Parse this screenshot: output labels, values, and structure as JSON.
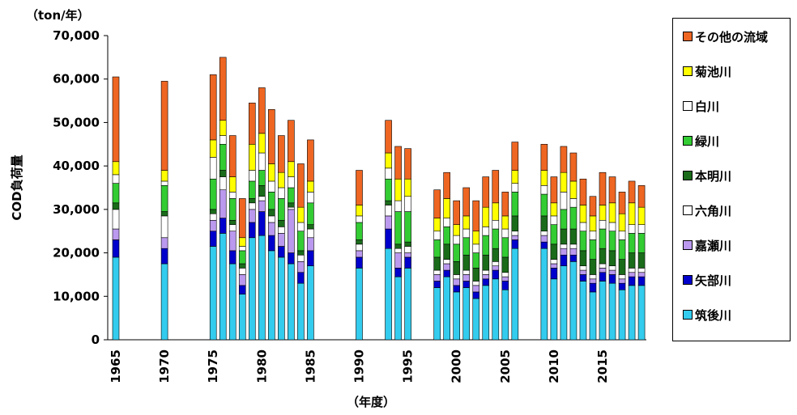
{
  "chart_data": {
    "type": "bar",
    "stacked": true,
    "unit_label": "（ton/年）",
    "xlabel": "（年度）",
    "ylabel": "COD負荷量",
    "ylim": [
      0,
      70000
    ],
    "y_ticks": [
      "0",
      "10,000",
      "20,000",
      "30,000",
      "40,000",
      "50,000",
      "60,000",
      "70,000"
    ],
    "x_tick_labels": [
      1965,
      1970,
      1975,
      1980,
      1985,
      1990,
      1995,
      2000,
      2005,
      2010,
      2015
    ],
    "legend_position": "right",
    "x": [
      1965,
      1970,
      1975,
      1976,
      1977,
      1978,
      1979,
      1980,
      1981,
      1982,
      1983,
      1984,
      1985,
      1990,
      1993,
      1994,
      1995,
      1998,
      1999,
      2000,
      2001,
      2002,
      2003,
      2004,
      2005,
      2006,
      2009,
      2010,
      2011,
      2012,
      2013,
      2014,
      2015,
      2016,
      2017,
      2018,
      2019
    ],
    "series": [
      {
        "name": "筑後川",
        "color": "#33CCEE",
        "values": [
          19000,
          17500,
          21500,
          24500,
          17500,
          10500,
          23500,
          24000,
          20500,
          19000,
          17500,
          13000,
          17000,
          16500,
          21000,
          14500,
          16500,
          12000,
          14500,
          11000,
          12000,
          9500,
          12500,
          14000,
          11500,
          21000,
          21000,
          14000,
          17000,
          18000,
          13500,
          11000,
          13500,
          13000,
          11500,
          12500,
          12500
        ]
      },
      {
        "name": "矢部川",
        "color": "#0000CC",
        "values": [
          4000,
          3500,
          3500,
          3500,
          3000,
          2000,
          3500,
          5500,
          3500,
          2500,
          2500,
          2500,
          3500,
          2500,
          4500,
          2000,
          2500,
          1500,
          1500,
          1500,
          1500,
          1500,
          1500,
          2000,
          2000,
          2000,
          1500,
          2500,
          2500,
          1500,
          1500,
          2000,
          2000,
          2000,
          1500,
          2000,
          2000
        ]
      },
      {
        "name": "嘉瀬川",
        "color": "#BB99EE",
        "values": [
          2500,
          2500,
          2500,
          6500,
          4500,
          2500,
          3000,
          2500,
          3000,
          3000,
          10000,
          2500,
          3000,
          1500,
          3000,
          3500,
          1000,
          1500,
          1500,
          1500,
          1500,
          1500,
          1000,
          1000,
          1000,
          1000,
          1500,
          1000,
          1500,
          1500,
          1000,
          1000,
          1000,
          1000,
          1000,
          1000,
          1000
        ]
      },
      {
        "name": "六角川",
        "color": "#FFFFFF",
        "values": [
          4500,
          5000,
          1500,
          3000,
          1500,
          1500,
          1500,
          1000,
          1500,
          1500,
          500,
          1500,
          2000,
          1500,
          2500,
          1000,
          1500,
          1000,
          1000,
          1000,
          1000,
          1000,
          1000,
          1000,
          1000,
          1000,
          1000,
          1000,
          1000,
          1000,
          1000,
          1000,
          1000,
          1000,
          1000,
          1000,
          1000
        ]
      },
      {
        "name": "本明川",
        "color": "#1A6B1A",
        "values": [
          1500,
          1000,
          1000,
          1500,
          1000,
          1000,
          1000,
          2500,
          1500,
          1500,
          1000,
          1000,
          1000,
          1000,
          1000,
          1000,
          1000,
          3000,
          3500,
          3000,
          3500,
          3000,
          3500,
          3000,
          3500,
          3500,
          3500,
          3500,
          3500,
          3500,
          3500,
          3500,
          3500,
          3500,
          3500,
          3500,
          3500
        ]
      },
      {
        "name": "緑川",
        "color": "#33CC33",
        "values": [
          4500,
          6000,
          7000,
          6000,
          5000,
          3000,
          4000,
          3500,
          4000,
          5000,
          3500,
          4500,
          5000,
          4000,
          5000,
          7500,
          7000,
          4000,
          4000,
          4000,
          4000,
          3500,
          4500,
          4500,
          4500,
          5500,
          5000,
          4500,
          4500,
          5000,
          4500,
          4500,
          4500,
          4500,
          4500,
          4500,
          4500
        ]
      },
      {
        "name": "白川",
        "color": "#FFFFFF",
        "values": [
          2000,
          1000,
          5000,
          2000,
          1500,
          1000,
          2500,
          4000,
          2500,
          2500,
          2500,
          2000,
          2500,
          1500,
          2500,
          2500,
          3500,
          2000,
          2000,
          2000,
          2000,
          2000,
          2000,
          2000,
          2000,
          2000,
          2000,
          2000,
          4000,
          2000,
          2000,
          2000,
          2000,
          2000,
          2000,
          2000,
          2000
        ]
      },
      {
        "name": "菊池川",
        "color": "#FFFF00",
        "values": [
          3000,
          2500,
          4000,
          3500,
          3500,
          2000,
          6000,
          4500,
          4000,
          3500,
          3500,
          3500,
          2500,
          2500,
          3500,
          5000,
          4000,
          3000,
          4500,
          2500,
          3000,
          3000,
          4500,
          4000,
          3000,
          3000,
          3500,
          3000,
          4500,
          4000,
          4000,
          3500,
          3500,
          4500,
          4000,
          5000,
          4000
        ]
      },
      {
        "name": "その他の流域",
        "color": "#EE6622",
        "values": [
          19500,
          20500,
          15000,
          14500,
          9500,
          9000,
          9500,
          10500,
          12500,
          8500,
          9500,
          10000,
          9500,
          8000,
          7500,
          7500,
          7000,
          6500,
          6000,
          5500,
          6500,
          7000,
          7000,
          7500,
          5500,
          6500,
          6000,
          6000,
          6000,
          6500,
          6000,
          4500,
          7500,
          6000,
          5000,
          5000,
          5000
        ]
      }
    ]
  }
}
